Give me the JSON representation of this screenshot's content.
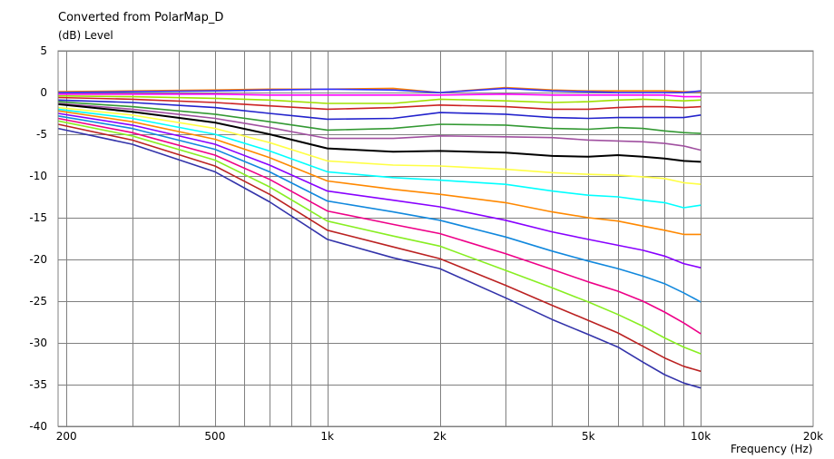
{
  "chart_data": {
    "type": "line",
    "title": "Converted from PolarMap_D",
    "ylabel": "(dB)  Level",
    "xlabel": "Frequency  (Hz)",
    "x_scale": "log",
    "xlim": [
      190,
      20000
    ],
    "ylim": [
      -40,
      5
    ],
    "grid": true,
    "yticks": [
      5,
      0,
      -5,
      -10,
      -15,
      -20,
      -25,
      -30,
      -35,
      -40
    ],
    "ytick_labels": [
      "5",
      "0",
      "-5",
      "-10",
      "-15",
      "-20",
      "-25",
      "-30",
      "-35",
      "-40"
    ],
    "xticks": [
      200,
      500,
      1000,
      2000,
      5000,
      10000,
      20000
    ],
    "xtick_labels": [
      "200",
      "500",
      "1k",
      "2k",
      "5k",
      "10k",
      "20k"
    ],
    "x": [
      190,
      300,
      500,
      700,
      1000,
      1500,
      2000,
      3000,
      4000,
      5000,
      6000,
      7000,
      8000,
      9000,
      10000
    ],
    "series": [
      {
        "color": "#ff8000",
        "values": [
          0.1,
          0.2,
          0.3,
          0.4,
          0.4,
          0.5,
          0.0,
          0.6,
          0.3,
          0.2,
          0.2,
          0.2,
          0.2,
          0.1,
          0.1
        ]
      },
      {
        "color": "#3333ff",
        "values": [
          0.0,
          0.1,
          0.2,
          0.3,
          0.4,
          0.3,
          0.0,
          0.5,
          0.2,
          0.1,
          0.0,
          0.0,
          0.0,
          0.0,
          0.2
        ]
      },
      {
        "color": "#ff00ff",
        "values": [
          -0.2,
          -0.2,
          -0.2,
          -0.3,
          -0.3,
          -0.3,
          -0.3,
          -0.2,
          -0.3,
          -0.3,
          -0.3,
          -0.3,
          -0.3,
          -0.5,
          -0.5
        ]
      },
      {
        "color": "#a0e000",
        "values": [
          -0.4,
          -0.5,
          -0.7,
          -0.9,
          -1.3,
          -1.3,
          -0.8,
          -1.0,
          -1.2,
          -1.1,
          -0.9,
          -0.8,
          -0.9,
          -1.0,
          -0.9
        ]
      },
      {
        "color": "#cc2222",
        "values": [
          -0.6,
          -0.8,
          -1.2,
          -1.6,
          -2.0,
          -1.8,
          -1.5,
          -1.7,
          -2.0,
          -2.0,
          -1.8,
          -1.7,
          -1.7,
          -1.8,
          -1.7
        ]
      },
      {
        "color": "#2222cc",
        "values": [
          -0.9,
          -1.2,
          -1.8,
          -2.5,
          -3.2,
          -3.1,
          -2.4,
          -2.6,
          -3.0,
          -3.1,
          -3.0,
          -3.0,
          -3.0,
          -3.0,
          -2.7
        ]
      },
      {
        "color": "#339933",
        "values": [
          -1.1,
          -1.7,
          -2.6,
          -3.5,
          -4.5,
          -4.3,
          -3.8,
          -3.9,
          -4.3,
          -4.4,
          -4.2,
          -4.3,
          -4.6,
          -4.8,
          -4.9
        ]
      },
      {
        "color": "#a050a0",
        "values": [
          -1.3,
          -2.0,
          -3.1,
          -4.2,
          -5.5,
          -5.5,
          -5.2,
          -5.3,
          -5.4,
          -5.7,
          -5.8,
          -5.9,
          -6.1,
          -6.4,
          -6.9
        ]
      },
      {
        "color": "#000000",
        "values": [
          -1.4,
          -2.3,
          -3.6,
          -5.0,
          -6.7,
          -7.1,
          -7.0,
          -7.2,
          -7.6,
          -7.7,
          -7.5,
          -7.7,
          -7.9,
          -8.2,
          -8.3
        ]
      },
      {
        "color": "#ffff44",
        "values": [
          -1.8,
          -2.7,
          -4.3,
          -6.0,
          -8.2,
          -8.7,
          -8.8,
          -9.2,
          -9.6,
          -9.8,
          -9.9,
          -10.1,
          -10.3,
          -10.8,
          -11.0
        ]
      },
      {
        "color": "#00ffff",
        "values": [
          -2.0,
          -3.1,
          -5.0,
          -7.0,
          -9.5,
          -10.2,
          -10.5,
          -11.0,
          -11.8,
          -12.3,
          -12.5,
          -12.9,
          -13.2,
          -13.8,
          -13.5
        ]
      },
      {
        "color": "#ff8800",
        "values": [
          -2.2,
          -3.5,
          -5.6,
          -7.8,
          -10.6,
          -11.6,
          -12.2,
          -13.2,
          -14.3,
          -15.0,
          -15.4,
          -16.0,
          -16.5,
          -17.0,
          -17.0
        ]
      },
      {
        "color": "#8800ff",
        "values": [
          -2.5,
          -3.9,
          -6.2,
          -8.7,
          -11.8,
          -12.9,
          -13.7,
          -15.3,
          -16.7,
          -17.6,
          -18.3,
          -18.9,
          -19.6,
          -20.5,
          -21.0
        ]
      },
      {
        "color": "#1188dd",
        "values": [
          -2.8,
          -4.3,
          -6.8,
          -9.5,
          -13.0,
          -14.3,
          -15.3,
          -17.3,
          -19.0,
          -20.2,
          -21.1,
          -22.0,
          -22.9,
          -24.0,
          -25.1
        ]
      },
      {
        "color": "#ee0088",
        "values": [
          -3.1,
          -4.8,
          -7.5,
          -10.4,
          -14.2,
          -15.8,
          -16.9,
          -19.3,
          -21.2,
          -22.7,
          -23.8,
          -25.0,
          -26.3,
          -27.6,
          -28.9
        ]
      },
      {
        "color": "#88ee22",
        "values": [
          -3.4,
          -5.2,
          -8.1,
          -11.3,
          -15.4,
          -17.2,
          -18.4,
          -21.3,
          -23.4,
          -25.1,
          -26.6,
          -28.0,
          -29.4,
          -30.5,
          -31.3
        ]
      },
      {
        "color": "#bb2222",
        "values": [
          -3.8,
          -5.7,
          -8.8,
          -12.2,
          -16.5,
          -18.5,
          -19.9,
          -23.1,
          -25.5,
          -27.3,
          -28.8,
          -30.4,
          -31.8,
          -32.8,
          -33.4
        ]
      },
      {
        "color": "#3333aa",
        "values": [
          -4.3,
          -6.2,
          -9.5,
          -13.1,
          -17.6,
          -19.8,
          -21.1,
          -24.6,
          -27.2,
          -29.0,
          -30.5,
          -32.3,
          -33.8,
          -34.8,
          -35.4
        ]
      }
    ]
  }
}
